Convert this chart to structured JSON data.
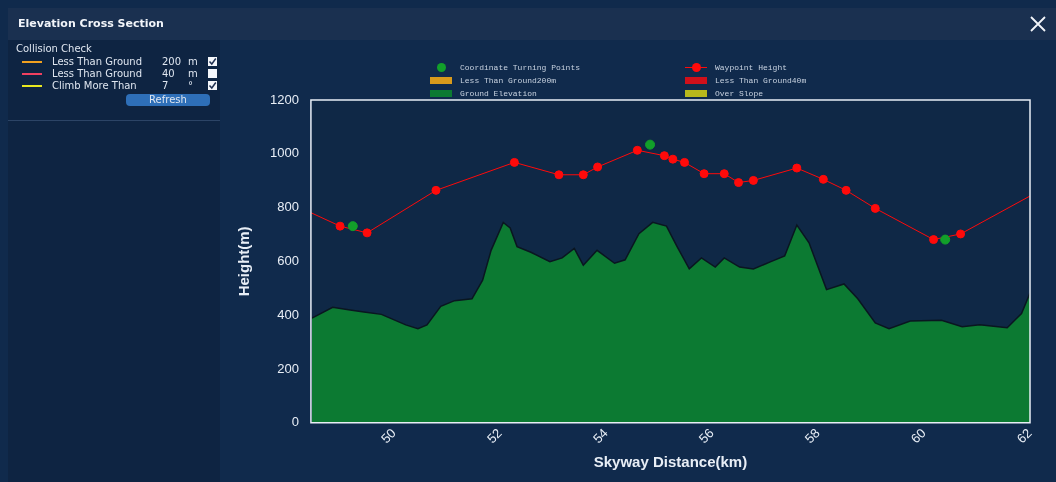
{
  "chart_data": {
    "type": "area",
    "title": "Elevation Cross Section",
    "xlabel": "Skyway Distance(km)",
    "ylabel": "Height(m)",
    "xlim": [
      48.43,
      62
    ],
    "xticks": [
      50,
      52,
      54,
      56,
      58,
      60,
      62
    ],
    "ylim": [
      0,
      1200
    ],
    "yticks": [
      0,
      200,
      400,
      600,
      800,
      1000,
      1200
    ],
    "grid": false,
    "legend": "top",
    "annotations": [
      "Collision Check",
      "Less Than Ground",
      "200",
      "m",
      "Less Than Ground",
      "40",
      "m",
      "Climb More Than",
      "7",
      "°",
      "Refresh"
    ],
    "series": [
      {
        "name": "Coordinate Turning Points",
        "type": "scatter",
        "marker": "circle",
        "color": "#12a02a",
        "x": [
          49.22,
          54.83,
          60.4
        ],
        "values": [
          731,
          1034,
          681
        ]
      },
      {
        "name": "Waypoint Height",
        "type": "line",
        "marker": "circle",
        "color": "#ff0a0a",
        "x": [
          48.43,
          48.98,
          49.49,
          50.79,
          52.27,
          53.11,
          53.57,
          53.84,
          54.59,
          55.1,
          55.26,
          55.48,
          55.85,
          56.23,
          56.5,
          56.78,
          57.6,
          58.1,
          58.53,
          59.08,
          60.18,
          60.69,
          62
        ],
        "values": [
          781,
          731,
          706,
          864,
          968,
          922,
          922,
          951,
          1013,
          993,
          980,
          968,
          926,
          926,
          893,
          901,
          947,
          905,
          864,
          797,
          681,
          702,
          843
        ]
      },
      {
        "name": "Less Than Ground200m",
        "color": "#d89a1c"
      },
      {
        "name": "Less Than Ground40m",
        "color": "#d0101a"
      },
      {
        "name": "Ground Elevation",
        "color": "#0c7a32",
        "x": [
          48.45,
          48.84,
          49.17,
          49.43,
          49.76,
          50.22,
          50.45,
          50.62,
          50.88,
          51.14,
          51.47,
          51.67,
          51.83,
          52.06,
          52.19,
          52.32,
          52.58,
          52.94,
          53.17,
          53.4,
          53.57,
          53.83,
          54.16,
          54.36,
          54.62,
          54.88,
          55.14,
          55.34,
          55.57,
          55.8,
          56.06,
          56.23,
          56.52,
          56.78,
          57.11,
          57.37,
          57.6,
          57.83,
          58.16,
          58.49,
          58.75,
          59.08,
          59.34,
          59.74,
          60.33,
          60.72,
          61.05,
          61.57,
          61.84,
          62
        ],
        "values": [
          389,
          429,
          419,
          412,
          403,
          364,
          350,
          364,
          433,
          454,
          461,
          530,
          641,
          745,
          724,
          655,
          634,
          599,
          613,
          648,
          586,
          641,
          593,
          606,
          703,
          745,
          731,
          655,
          572,
          613,
          579,
          613,
          579,
          572,
          599,
          620,
          735,
          669,
          495,
          516,
          461,
          371,
          350,
          378,
          381,
          357,
          364,
          353,
          406,
          482
        ]
      },
      {
        "name": "Over Slope",
        "color": "#b8b81c"
      }
    ]
  }
}
